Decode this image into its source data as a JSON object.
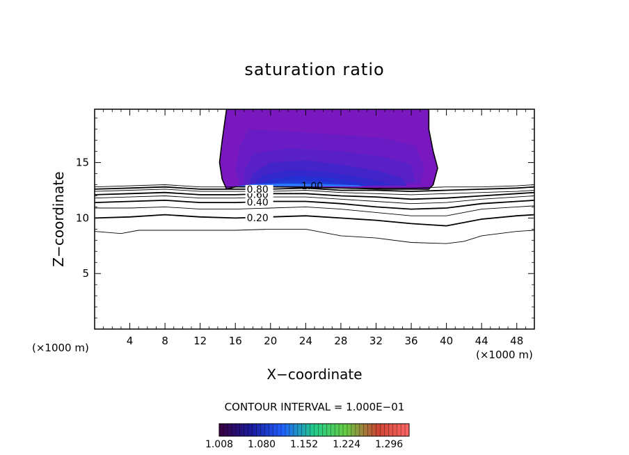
{
  "chart_data": {
    "type": "contour",
    "title": "saturation ratio",
    "xlabel": "X−coordinate",
    "ylabel": "Z−coordinate",
    "x_unit_label": "(×1000 m)",
    "y_unit_label": "(×1000 m)",
    "xlim": [
      0,
      50
    ],
    "ylim": [
      0,
      19.8
    ],
    "x_ticks": [
      "4",
      "8",
      "12",
      "16",
      "20",
      "24",
      "28",
      "32",
      "36",
      "40",
      "44",
      "48"
    ],
    "y_ticks": [
      "5",
      "10",
      "15"
    ],
    "x_tick_values": [
      4,
      8,
      12,
      16,
      20,
      24,
      28,
      32,
      36,
      40,
      44,
      48
    ],
    "y_tick_values": [
      5,
      10,
      15
    ],
    "contour_interval_text": "CONTOUR INTERVAL = 1.000E−01",
    "colorbar": {
      "tick_labels": [
        "1.008",
        "1.080",
        "1.152",
        "1.224",
        "1.296"
      ],
      "range": [
        1.008,
        1.33
      ],
      "colors": [
        "#3a0040",
        "#1a1a9a",
        "#2060ff",
        "#22cc88",
        "#66cc44",
        "#cc4433",
        "#ff6666"
      ]
    },
    "contour_lines": [
      {
        "level": "0.20",
        "label": "0.20",
        "label_x": 17.3,
        "points": [
          [
            0,
            10.0
          ],
          [
            4,
            10.1
          ],
          [
            8,
            10.3
          ],
          [
            12,
            10.1
          ],
          [
            16,
            10.0
          ],
          [
            20,
            10.1
          ],
          [
            24,
            10.2
          ],
          [
            28,
            10.0
          ],
          [
            32,
            9.8
          ],
          [
            36,
            9.5
          ],
          [
            40,
            9.3
          ],
          [
            44,
            9.9
          ],
          [
            48,
            10.2
          ],
          [
            50,
            10.3
          ]
        ],
        "bold": true
      },
      {
        "level": "0.10",
        "label": "",
        "label_x": null,
        "points": [
          [
            0,
            8.8
          ],
          [
            3,
            8.6
          ],
          [
            5,
            8.9
          ],
          [
            10,
            8.9
          ],
          [
            16,
            8.9
          ],
          [
            20,
            9.0
          ],
          [
            24,
            9.0
          ],
          [
            28,
            8.4
          ],
          [
            32,
            8.2
          ],
          [
            36,
            7.8
          ],
          [
            40,
            7.7
          ],
          [
            42,
            7.9
          ],
          [
            44,
            8.4
          ],
          [
            48,
            8.8
          ],
          [
            50,
            8.9
          ]
        ],
        "bold": false
      },
      {
        "level": "0.30",
        "label": "",
        "label_x": null,
        "points": [
          [
            0,
            10.9
          ],
          [
            4,
            10.9
          ],
          [
            8,
            11.0
          ],
          [
            12,
            10.8
          ],
          [
            16,
            10.8
          ],
          [
            20,
            10.9
          ],
          [
            24,
            11.0
          ],
          [
            28,
            10.8
          ],
          [
            32,
            10.5
          ],
          [
            36,
            10.2
          ],
          [
            40,
            10.2
          ],
          [
            44,
            10.8
          ],
          [
            48,
            11.0
          ],
          [
            50,
            11.1
          ]
        ],
        "bold": false
      },
      {
        "level": "0.40",
        "label": "0.40",
        "label_x": 17.3,
        "points": [
          [
            0,
            11.4
          ],
          [
            4,
            11.5
          ],
          [
            8,
            11.6
          ],
          [
            12,
            11.4
          ],
          [
            16,
            11.4
          ],
          [
            20,
            11.5
          ],
          [
            24,
            11.5
          ],
          [
            28,
            11.3
          ],
          [
            32,
            11.0
          ],
          [
            36,
            10.8
          ],
          [
            40,
            10.9
          ],
          [
            44,
            11.3
          ],
          [
            48,
            11.5
          ],
          [
            50,
            11.6
          ]
        ],
        "bold": true
      },
      {
        "level": "0.50",
        "label": "",
        "label_x": null,
        "points": [
          [
            0,
            11.8
          ],
          [
            4,
            11.9
          ],
          [
            8,
            12.0
          ],
          [
            12,
            11.8
          ],
          [
            16,
            11.8
          ],
          [
            20,
            11.9
          ],
          [
            24,
            11.9
          ],
          [
            28,
            11.7
          ],
          [
            32,
            11.5
          ],
          [
            36,
            11.3
          ],
          [
            40,
            11.4
          ],
          [
            44,
            11.7
          ],
          [
            48,
            11.9
          ],
          [
            50,
            12.0
          ]
        ],
        "bold": false
      },
      {
        "level": "0.60",
        "label": "0.60",
        "label_x": 17.3,
        "points": [
          [
            0,
            12.1
          ],
          [
            4,
            12.2
          ],
          [
            8,
            12.3
          ],
          [
            12,
            12.1
          ],
          [
            16,
            12.1
          ],
          [
            20,
            12.2
          ],
          [
            24,
            12.2
          ],
          [
            28,
            12.0
          ],
          [
            32,
            11.9
          ],
          [
            36,
            11.7
          ],
          [
            40,
            11.8
          ],
          [
            44,
            12.0
          ],
          [
            48,
            12.2
          ],
          [
            50,
            12.3
          ]
        ],
        "bold": true
      },
      {
        "level": "0.70",
        "label": "",
        "label_x": null,
        "points": [
          [
            0,
            12.4
          ],
          [
            4,
            12.5
          ],
          [
            8,
            12.6
          ],
          [
            12,
            12.4
          ],
          [
            16,
            12.4
          ],
          [
            20,
            12.4
          ],
          [
            24,
            12.5
          ],
          [
            28,
            12.3
          ],
          [
            32,
            12.2
          ],
          [
            36,
            12.1
          ],
          [
            40,
            12.2
          ],
          [
            44,
            12.3
          ],
          [
            48,
            12.4
          ],
          [
            50,
            12.5
          ]
        ],
        "bold": false
      },
      {
        "level": "0.80",
        "label": "0.80",
        "label_x": 17.3,
        "points": [
          [
            0,
            12.6
          ],
          [
            4,
            12.7
          ],
          [
            8,
            12.8
          ],
          [
            12,
            12.6
          ],
          [
            16,
            12.6
          ],
          [
            20,
            12.6
          ],
          [
            24,
            12.7
          ],
          [
            28,
            12.5
          ],
          [
            32,
            12.5
          ],
          [
            36,
            12.4
          ],
          [
            40,
            12.5
          ],
          [
            44,
            12.6
          ],
          [
            48,
            12.7
          ],
          [
            50,
            12.8
          ]
        ],
        "bold": true
      },
      {
        "level": "0.90",
        "label": "",
        "label_x": null,
        "points": [
          [
            0,
            12.8
          ],
          [
            4,
            12.9
          ],
          [
            8,
            13.0
          ],
          [
            12,
            12.8
          ],
          [
            16,
            12.8
          ],
          [
            20,
            12.8
          ],
          [
            24,
            12.8
          ],
          [
            28,
            12.7
          ],
          [
            32,
            12.7
          ],
          [
            36,
            12.7
          ],
          [
            40,
            12.8
          ],
          [
            44,
            12.8
          ],
          [
            48,
            12.9
          ],
          [
            50,
            13.0
          ]
        ],
        "bold": false
      }
    ],
    "contour_label_1": {
      "text": "1.00",
      "x": 23.5,
      "y": 12.9
    },
    "cloud_region": {
      "outline": [
        [
          15.0,
          12.6
        ],
        [
          14.5,
          13.5
        ],
        [
          14.2,
          15.0
        ],
        [
          14.5,
          17.0
        ],
        [
          15.0,
          19.8
        ],
        [
          38.0,
          19.8
        ],
        [
          38.0,
          18.0
        ],
        [
          38.5,
          16.0
        ],
        [
          39.0,
          14.5
        ],
        [
          38.5,
          13.0
        ],
        [
          38.0,
          12.6
        ],
        [
          33.0,
          12.6
        ],
        [
          28.0,
          12.7
        ],
        [
          22.0,
          12.8
        ],
        [
          16.0,
          12.8
        ]
      ],
      "fill_levels": [
        {
          "color": "#7a18c0",
          "outline": [
            [
              15.0,
              12.6
            ],
            [
              14.5,
              13.5
            ],
            [
              14.2,
              15.0
            ],
            [
              14.5,
              17.0
            ],
            [
              15.0,
              19.8
            ],
            [
              38.0,
              19.8
            ],
            [
              38.0,
              18.0
            ],
            [
              38.5,
              16.0
            ],
            [
              39.0,
              14.5
            ],
            [
              38.5,
              13.0
            ],
            [
              38.0,
              12.6
            ],
            [
              16.0,
              12.8
            ]
          ]
        },
        {
          "color": "#6a1cc4",
          "outline": [
            [
              16.5,
              12.8
            ],
            [
              16.0,
              14.5
            ],
            [
              16.5,
              16.5
            ],
            [
              17.5,
              18.0
            ],
            [
              22.0,
              17.8
            ],
            [
              28.0,
              17.5
            ],
            [
              33.0,
              17.2
            ],
            [
              36.5,
              16.5
            ],
            [
              37.5,
              14.5
            ],
            [
              37.0,
              13.0
            ]
          ]
        },
        {
          "color": "#5820c6",
          "outline": [
            [
              17.0,
              12.8
            ],
            [
              17.0,
              14.2
            ],
            [
              18.0,
              15.8
            ],
            [
              22.0,
              16.3
            ],
            [
              28.0,
              16.0
            ],
            [
              33.0,
              15.5
            ],
            [
              36.0,
              14.8
            ],
            [
              36.5,
              13.2
            ]
          ]
        },
        {
          "color": "#4324c8",
          "outline": [
            [
              17.5,
              12.9
            ],
            [
              18.0,
              14.0
            ],
            [
              20.0,
              15.0
            ],
            [
              24.0,
              15.2
            ],
            [
              28.0,
              14.8
            ],
            [
              32.0,
              14.3
            ],
            [
              35.0,
              13.6
            ],
            [
              35.5,
              12.9
            ]
          ]
        },
        {
          "color": "#3228cc",
          "outline": [
            [
              18.0,
              12.9
            ],
            [
              19.0,
              13.8
            ],
            [
              22.0,
              14.3
            ],
            [
              26.0,
              14.2
            ],
            [
              30.0,
              13.7
            ],
            [
              33.0,
              13.2
            ],
            [
              34.0,
              12.9
            ]
          ]
        },
        {
          "color": "#2530d2",
          "outline": [
            [
              18.5,
              12.9
            ],
            [
              20.0,
              13.5
            ],
            [
              23.0,
              13.8
            ],
            [
              27.0,
              13.6
            ],
            [
              30.0,
              13.2
            ],
            [
              31.5,
              12.9
            ]
          ]
        },
        {
          "color": "#1d3ed8",
          "outline": [
            [
              19.5,
              12.95
            ],
            [
              21.5,
              13.35
            ],
            [
              24.0,
              13.4
            ],
            [
              27.0,
              13.2
            ],
            [
              29.0,
              12.95
            ]
          ]
        },
        {
          "color": "#2a78ff",
          "outline": [
            [
              16.0,
              12.85
            ],
            [
              18.0,
              13.05
            ],
            [
              22.0,
              13.1
            ],
            [
              26.0,
              13.05
            ],
            [
              30.0,
              12.95
            ],
            [
              30.5,
              12.85
            ]
          ]
        }
      ]
    }
  }
}
